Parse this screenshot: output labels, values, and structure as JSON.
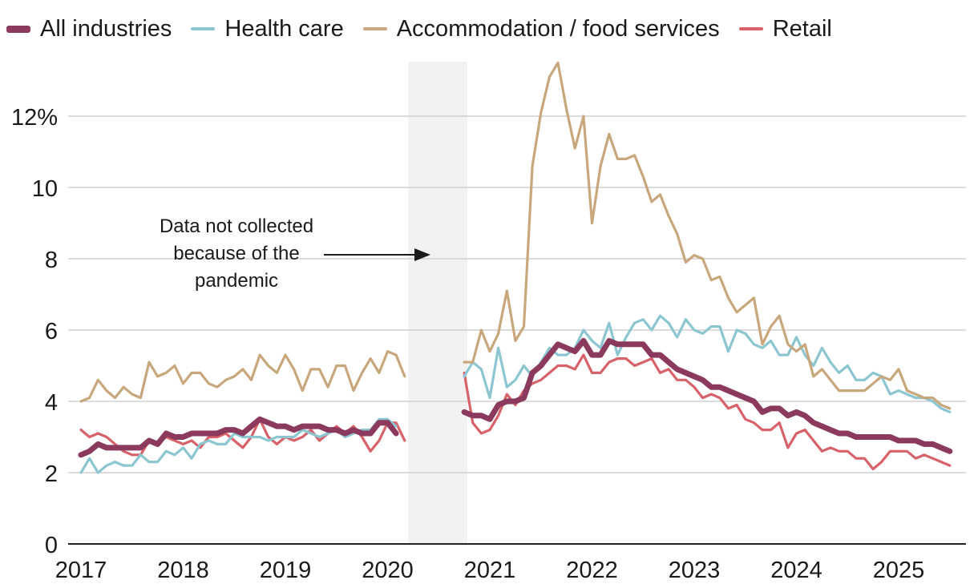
{
  "chart_data": {
    "type": "line",
    "title": "",
    "xlabel": "",
    "ylabel": "",
    "ylim": [
      0,
      13.5
    ],
    "xlim": [
      2017,
      2025.7
    ],
    "grid": "horizontal",
    "legend_position": "top",
    "x_ticks": [
      {
        "value": 2017,
        "label": "2017"
      },
      {
        "value": 2018,
        "label": "2018"
      },
      {
        "value": 2019,
        "label": "2019"
      },
      {
        "value": 2020,
        "label": "2020"
      },
      {
        "value": 2021,
        "label": "2021"
      },
      {
        "value": 2022,
        "label": "2022"
      },
      {
        "value": 2023,
        "label": "2023"
      },
      {
        "value": 2024,
        "label": "2024"
      },
      {
        "value": 2025,
        "label": "2025"
      }
    ],
    "y_ticks": [
      {
        "value": 0,
        "label": "0"
      },
      {
        "value": 2,
        "label": "2"
      },
      {
        "value": 4,
        "label": "4"
      },
      {
        "value": 6,
        "label": "6"
      },
      {
        "value": 8,
        "label": "8"
      },
      {
        "value": 10,
        "label": "10"
      },
      {
        "value": 12,
        "label": "12%"
      }
    ],
    "shaded_region": {
      "x_start": 2020.2,
      "x_end": 2020.78,
      "color": "#f2f2f2"
    },
    "annotation": {
      "lines": [
        "Data not collected",
        "because of the",
        "pandemic"
      ],
      "points_to": "shaded region"
    },
    "series": [
      {
        "name": "All industries",
        "color": "#8b3a5e",
        "segments": [
          {
            "start": 2017.0,
            "values": [
              2.5,
              2.6,
              2.8,
              2.7,
              2.7,
              2.7,
              2.7,
              2.7,
              2.9,
              2.8,
              3.1,
              3.0,
              3.0,
              3.1,
              3.1,
              3.1,
              3.1,
              3.2,
              3.2,
              3.1,
              3.3,
              3.5,
              3.4,
              3.3,
              3.3,
              3.2,
              3.3,
              3.3,
              3.3,
              3.2,
              3.2,
              3.1,
              3.2,
              3.1,
              3.1,
              3.4,
              3.4,
              3.1
            ]
          },
          {
            "start": 2020.75,
            "values": [
              3.7,
              3.6,
              3.6,
              3.5,
              3.9,
              4.0,
              4.0,
              4.1,
              4.8,
              5.0,
              5.3,
              5.6,
              5.5,
              5.4,
              5.7,
              5.3,
              5.3,
              5.7,
              5.6,
              5.6,
              5.6,
              5.6,
              5.3,
              5.3,
              5.1,
              4.9,
              4.8,
              4.7,
              4.6,
              4.4,
              4.4,
              4.3,
              4.2,
              4.1,
              4.0,
              3.7,
              3.8,
              3.8,
              3.6,
              3.7,
              3.6,
              3.4,
              3.3,
              3.2,
              3.1,
              3.1,
              3.0,
              3.0,
              3.0,
              3.0,
              3.0,
              2.9,
              2.9,
              2.9,
              2.8,
              2.8,
              2.7,
              2.6
            ]
          }
        ]
      },
      {
        "name": "Health care",
        "color": "#8cc6d1",
        "segments": [
          {
            "start": 2017.0,
            "values": [
              2.0,
              2.4,
              2.0,
              2.2,
              2.3,
              2.2,
              2.2,
              2.5,
              2.3,
              2.3,
              2.6,
              2.5,
              2.7,
              2.4,
              2.8,
              2.9,
              2.8,
              2.8,
              3.1,
              3.0,
              3.0,
              3.0,
              2.9,
              3.0,
              3.0,
              3.0,
              3.2,
              3.1,
              3.0,
              3.1,
              3.2,
              3.0,
              3.1,
              3.2,
              3.2,
              3.5,
              3.5,
              3.3
            ]
          },
          {
            "start": 2020.75,
            "values": [
              4.7,
              5.1,
              4.9,
              4.1,
              5.5,
              4.4,
              4.6,
              5.0,
              4.7,
              5.1,
              5.5,
              5.3,
              5.3,
              5.5,
              6.0,
              5.7,
              5.5,
              6.2,
              5.3,
              5.8,
              6.2,
              6.3,
              6.0,
              6.4,
              6.2,
              5.8,
              6.3,
              6.0,
              5.9,
              6.1,
              6.1,
              5.4,
              6.0,
              5.9,
              5.6,
              5.5,
              5.7,
              5.3,
              5.3,
              5.8,
              5.3,
              5.0,
              5.5,
              5.1,
              4.8,
              5.0,
              4.6,
              4.6,
              4.8,
              4.7,
              4.2,
              4.3,
              4.2,
              4.1,
              4.1,
              4.0,
              3.8,
              3.7
            ]
          }
        ]
      },
      {
        "name": "Accommodation / food services",
        "color": "#c9a77c",
        "segments": [
          {
            "start": 2017.0,
            "values": [
              4.0,
              4.1,
              4.6,
              4.3,
              4.1,
              4.4,
              4.2,
              4.1,
              5.1,
              4.7,
              4.8,
              5.0,
              4.5,
              4.8,
              4.8,
              4.5,
              4.4,
              4.6,
              4.7,
              4.9,
              4.6,
              5.3,
              5.0,
              4.8,
              5.3,
              4.9,
              4.3,
              4.9,
              4.9,
              4.4,
              5.0,
              5.0,
              4.3,
              4.8,
              5.2,
              4.8,
              5.4,
              5.3,
              4.7
            ]
          },
          {
            "start": 2020.75,
            "values": [
              5.1,
              5.1,
              6.0,
              5.4,
              5.9,
              7.1,
              5.7,
              6.1,
              10.6,
              12.1,
              13.1,
              13.5,
              12.2,
              11.1,
              12.0,
              9.0,
              10.6,
              11.5,
              10.8,
              10.8,
              10.9,
              10.3,
              9.6,
              9.8,
              9.2,
              8.7,
              7.9,
              8.1,
              8.0,
              7.4,
              7.5,
              6.9,
              6.5,
              6.7,
              6.9,
              5.6,
              6.1,
              6.4,
              5.6,
              5.4,
              5.6,
              4.7,
              4.9,
              4.6,
              4.3,
              4.3,
              4.3,
              4.3,
              4.5,
              4.7,
              4.6,
              4.9,
              4.3,
              4.2,
              4.1,
              4.1,
              3.9,
              3.8
            ]
          }
        ]
      },
      {
        "name": "Retail",
        "color": "#d8626a",
        "segments": [
          {
            "start": 2017.0,
            "values": [
              3.2,
              3.0,
              3.1,
              3.0,
              2.8,
              2.6,
              2.5,
              2.5,
              2.9,
              2.8,
              3.0,
              2.9,
              2.8,
              2.9,
              2.7,
              3.0,
              3.0,
              3.1,
              2.9,
              2.7,
              3.0,
              3.5,
              3.0,
              2.8,
              3.0,
              2.9,
              3.0,
              3.2,
              2.9,
              3.1,
              3.3,
              3.1,
              3.3,
              3.0,
              2.6,
              2.9,
              3.4,
              3.4,
              2.9
            ]
          },
          {
            "start": 2020.75,
            "values": [
              4.8,
              3.4,
              3.1,
              3.2,
              3.6,
              4.2,
              3.9,
              4.3,
              4.5,
              4.6,
              4.8,
              5.0,
              5.0,
              4.9,
              5.3,
              4.8,
              4.8,
              5.1,
              5.2,
              5.2,
              5.0,
              5.1,
              5.2,
              4.8,
              4.9,
              4.6,
              4.6,
              4.4,
              4.1,
              4.2,
              4.1,
              3.8,
              3.9,
              3.5,
              3.4,
              3.2,
              3.2,
              3.4,
              2.7,
              3.1,
              3.2,
              2.9,
              2.6,
              2.7,
              2.6,
              2.6,
              2.4,
              2.4,
              2.1,
              2.3,
              2.6,
              2.6,
              2.6,
              2.4,
              2.5,
              2.4,
              2.3,
              2.2
            ]
          }
        ]
      }
    ]
  }
}
